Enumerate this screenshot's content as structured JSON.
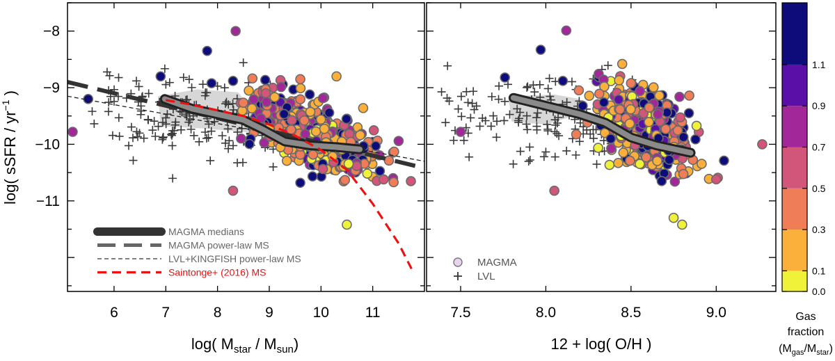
{
  "figure": {
    "y_label_main": "log( sSFR / yr",
    "y_label_sup": "−1",
    "y_label_end": " )"
  },
  "chart_data": [
    {
      "type": "scatter",
      "panel": "left",
      "xlim": [
        5.1,
        12.0
      ],
      "ylim": [
        -12.6,
        -7.5
      ],
      "xticks": [
        6,
        7,
        8,
        9,
        10,
        11
      ],
      "yticks": [
        -8,
        -9,
        -10,
        -11
      ],
      "ytick_labels": [
        "−8",
        "−9",
        "−10",
        "−11"
      ],
      "xlabel_parts": [
        "log( M",
        "star",
        " / M",
        "sun",
        ")"
      ],
      "legend": [
        {
          "name": "MAGMA medians",
          "style": "thick-solid",
          "color": "#333333"
        },
        {
          "name": "MAGMA power-law MS",
          "style": "long-dash",
          "color": "#666666"
        },
        {
          "name": "LVL+KINGFISH power-law MS",
          "style": "short-dash",
          "color": "#333333"
        },
        {
          "name": "Saintonge+ (2016) MS",
          "style": "red-dash",
          "color": "#ee1111"
        }
      ],
      "medians": {
        "x": [
          6.98,
          7.5,
          8.0,
          8.5,
          8.9,
          9.3,
          9.8,
          10.3,
          10.75
        ],
        "y": [
          -9.2,
          -9.37,
          -9.47,
          -9.57,
          -9.75,
          -9.95,
          -10.02,
          -10.05,
          -10.09
        ]
      },
      "shade": {
        "x": [
          6.85,
          7.6,
          8.4,
          8.8,
          8.9,
          8.5,
          7.7,
          6.9
        ],
        "y": [
          -9.15,
          -9.03,
          -9.08,
          -9.55,
          -9.85,
          -9.78,
          -9.72,
          -9.68
        ]
      },
      "magma_power_law": {
        "x": [
          5.1,
          12.0
        ],
        "y": [
          -8.9,
          -10.42
        ]
      },
      "lvl_power_law": {
        "x": [
          5.1,
          12.0
        ],
        "y": [
          -9.15,
          -10.3
        ]
      },
      "saintonge": {
        "x": [
          7.0,
          7.5,
          8.0,
          8.5,
          9.0,
          9.5,
          10.0,
          10.5,
          11.0,
          11.5,
          11.75
        ],
        "y": [
          -9.22,
          -9.3,
          -9.4,
          -9.5,
          -9.65,
          -9.85,
          -10.1,
          -10.45,
          -11.05,
          -11.75,
          -12.2
        ]
      },
      "highlight_points": [
        {
          "x": 5.5,
          "y": -9.2,
          "f": 1.2
        },
        {
          "x": 5.2,
          "y": -9.78,
          "f": 0.8
        },
        {
          "x": 6.9,
          "y": -8.8,
          "f": 1.1
        },
        {
          "x": 7.8,
          "y": -8.35,
          "f": 1.2
        },
        {
          "x": 8.35,
          "y": -8.0,
          "f": 0.75
        },
        {
          "x": 8.3,
          "y": -8.88,
          "f": 1.1
        },
        {
          "x": 8.3,
          "y": -10.82,
          "f": 0.6
        },
        {
          "x": 10.5,
          "y": -11.42,
          "f": 0.05
        },
        {
          "x": 10.3,
          "y": -8.8,
          "f": 0.15
        },
        {
          "x": 9.6,
          "y": -8.85,
          "f": 0.4
        },
        {
          "x": 9.6,
          "y": -10.68,
          "f": 1.2
        }
      ]
    },
    {
      "type": "scatter",
      "panel": "right",
      "xlim": [
        7.3,
        9.35
      ],
      "ylim": [
        -12.6,
        -7.5
      ],
      "xticks": [
        7.5,
        8.0,
        8.5,
        9.0
      ],
      "xtick_labels": [
        "7.5",
        "8.0",
        "8.5",
        "9.0"
      ],
      "xlabel_parts": [
        "12 + log( O/H )"
      ],
      "legend": [
        {
          "name": "MAGMA",
          "marker": "circle"
        },
        {
          "name": "LVL",
          "marker": "plus"
        }
      ],
      "medians": {
        "x": [
          7.81,
          8.0,
          8.2,
          8.35,
          8.5,
          8.65,
          8.85
        ],
        "y": [
          -9.18,
          -9.32,
          -9.47,
          -9.62,
          -9.88,
          -10.02,
          -10.15
        ]
      },
      "shade": {
        "x": [
          7.78,
          8.05,
          8.2,
          8.22,
          8.0,
          7.8
        ],
        "y": [
          -9.15,
          -9.12,
          -9.2,
          -9.45,
          -9.65,
          -9.6
        ]
      },
      "highlight_points": [
        {
          "x": 7.97,
          "y": -8.33,
          "f": 1.2
        },
        {
          "x": 8.12,
          "y": -7.99,
          "f": 0.75
        },
        {
          "x": 7.76,
          "y": -8.82,
          "f": 1.15
        },
        {
          "x": 8.1,
          "y": -8.88,
          "f": 1.2
        },
        {
          "x": 8.43,
          "y": -8.87,
          "f": 0.15
        },
        {
          "x": 8.5,
          "y": -8.92,
          "f": 0.45
        },
        {
          "x": 8.05,
          "y": -10.82,
          "f": 0.6
        },
        {
          "x": 8.8,
          "y": -11.42,
          "f": 0.05
        },
        {
          "x": 9.27,
          "y": -10.0,
          "f": 0.6
        },
        {
          "x": 9.0,
          "y": -10.62,
          "f": 0.5
        },
        {
          "x": 7.5,
          "y": -9.78,
          "f": 0.75
        },
        {
          "x": 8.68,
          "y": -10.65,
          "f": 1.2
        },
        {
          "x": 8.84,
          "y": -9.45,
          "f": 1.2
        },
        {
          "x": 8.75,
          "y": -11.3,
          "f": 0.05
        }
      ]
    }
  ],
  "colorbar": {
    "title_line1": "Gas",
    "title_line2": "fraction",
    "title_line3_parts": [
      "(M",
      "gas",
      "/M",
      "star",
      ")"
    ],
    "bins": [
      {
        "from": 0.0,
        "to": 0.1,
        "color": "#f0f23a"
      },
      {
        "from": 0.1,
        "to": 0.3,
        "color": "#fbb03b"
      },
      {
        "from": 0.3,
        "to": 0.5,
        "color": "#ef7d58"
      },
      {
        "from": 0.5,
        "to": 0.7,
        "color": "#d2557a"
      },
      {
        "from": 0.7,
        "to": 0.9,
        "color": "#a2289a"
      },
      {
        "from": 0.9,
        "to": 1.1,
        "color": "#5a0fa6"
      },
      {
        "from": 1.1,
        "to": 1.4,
        "color": "#0d0c7a"
      }
    ],
    "tick_labels": [
      "0.0",
      "0.1",
      "0.3",
      "0.5",
      "0.7",
      "0.9",
      "1.1"
    ]
  }
}
